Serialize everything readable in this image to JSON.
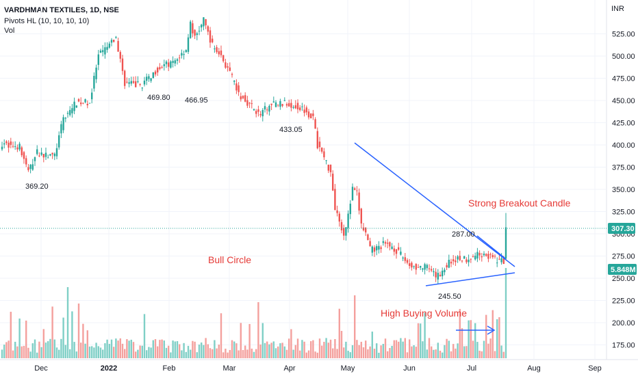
{
  "header": {
    "title": "VARDHMAN TEXTILES, 1D, NSE",
    "indicator": "Pivots HL (10, 10, 10, 10)",
    "volume_label": "Vol"
  },
  "colors": {
    "up": "#26a69a",
    "down": "#ef5350",
    "up_volume": "#7fcfc6",
    "down_volume": "#f4a09d",
    "trendline": "#2962ff",
    "annotation": "#e53935",
    "last_price_tag": "#26a69a"
  },
  "chart_data": {
    "type": "candlestick",
    "currency_label": "INR",
    "y_ticks": [
      "525.00",
      "500.00",
      "475.00",
      "450.00",
      "425.00",
      "400.00",
      "375.00",
      "350.00",
      "325.00",
      "300.00",
      "275.00",
      "250.00",
      "225.00",
      "200.00",
      "175.00"
    ],
    "x_ticks": [
      "Dec",
      "2022",
      "Feb",
      "Mar",
      "Apr",
      "May",
      "Jun",
      "Jul",
      "Aug",
      "Sep"
    ],
    "ylim": [
      165,
      545
    ],
    "last_price": "307.30",
    "last_volume": "5.848M",
    "pivot_labels": [
      "369.20",
      "469.80",
      "466.95",
      "433.05",
      "287.00",
      "245.50"
    ],
    "annotations": [
      "Bull Circle",
      "Strong Breakout  Candle",
      "High Buying Volume"
    ],
    "trendlines": [
      {
        "name": "upper",
        "from": {
          "date": "2022-05-01",
          "price": 404
        },
        "to": {
          "date": "2022-07-20",
          "price": 265
        }
      },
      {
        "name": "lower",
        "from": {
          "date": "2022-06-10",
          "price": 243
        },
        "to": {
          "date": "2022-07-20",
          "price": 258
        }
      },
      {
        "name": "minor",
        "from": {
          "date": "2022-06-30",
          "price": 300
        },
        "to": {
          "date": "2022-07-15",
          "price": 272
        }
      }
    ],
    "grid": true,
    "volume_pane": true
  }
}
